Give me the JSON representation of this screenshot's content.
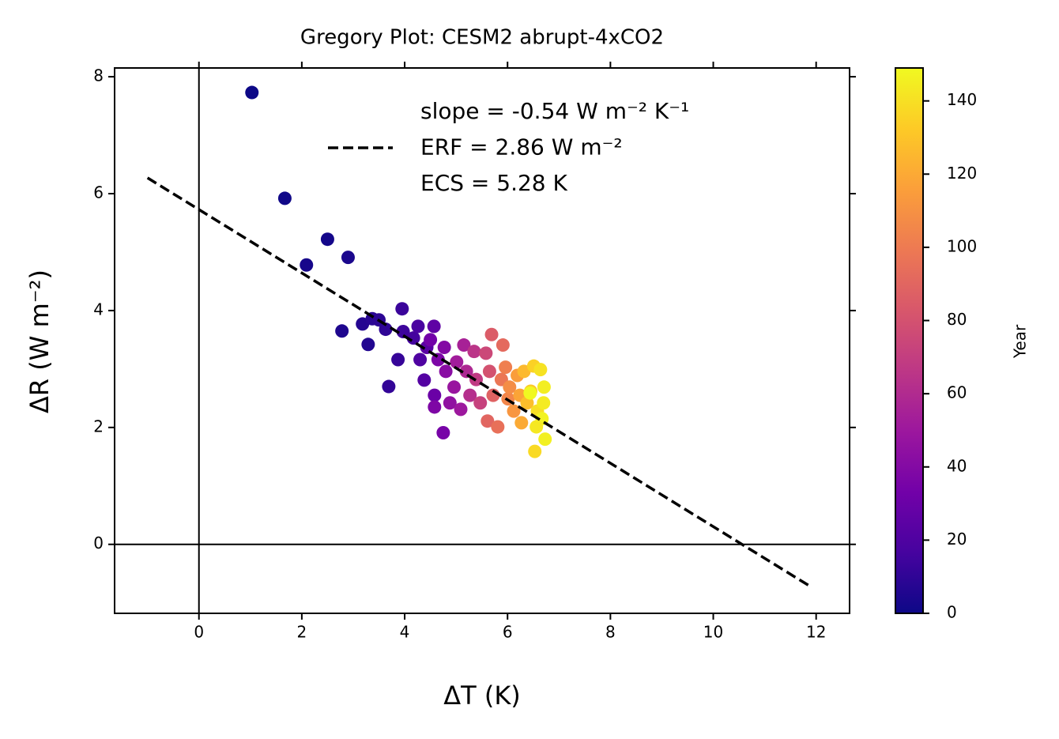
{
  "chart_data": {
    "type": "scatter",
    "title": "Gregory Plot: CESM2 abrupt-4xCO2",
    "x_label": "ΔT (K)",
    "y_label": "ΔR (W m⁻²)",
    "xlim": [
      -1.64,
      12.65
    ],
    "ylim": [
      -1.18,
      8.15
    ],
    "xticks": [
      0,
      2,
      4,
      6,
      8,
      10,
      12
    ],
    "yticks": [
      0,
      2,
      4,
      6,
      8
    ],
    "hline": 0,
    "vline": 0,
    "points": {
      "x": [
        1.03,
        1.67,
        2.5,
        2.09,
        2.9,
        2.78,
        3.29,
        3.18,
        3.37,
        3.5,
        3.63,
        3.69,
        3.87,
        3.95,
        3.97,
        4.17,
        4.26,
        4.3,
        4.38,
        4.43,
        4.57,
        4.58,
        4.75,
        4.58,
        4.5,
        4.65,
        4.77,
        4.8,
        4.88,
        4.96,
        5.01,
        5.09,
        5.15,
        5.2,
        5.27,
        5.35,
        5.39,
        5.47,
        5.58,
        5.65,
        5.69,
        5.72,
        5.61,
        5.81,
        5.91,
        5.88,
        5.96,
        6.01,
        6.04,
        6.12,
        6.19,
        6.24,
        6.27,
        6.32,
        6.38,
        6.45,
        6.51,
        6.53,
        6.58,
        6.64,
        6.7,
        6.73,
        6.67,
        6.71,
        6.56,
        6.44
      ],
      "y": [
        7.73,
        5.92,
        5.22,
        4.78,
        4.91,
        3.65,
        3.42,
        3.77,
        3.86,
        3.84,
        3.68,
        2.7,
        3.16,
        4.03,
        3.64,
        3.53,
        3.73,
        3.16,
        2.81,
        3.37,
        3.73,
        2.55,
        1.91,
        2.35,
        3.5,
        3.16,
        3.37,
        2.96,
        2.42,
        2.69,
        3.12,
        2.31,
        3.41,
        2.96,
        2.55,
        3.3,
        2.82,
        2.42,
        3.27,
        2.96,
        3.59,
        2.55,
        2.11,
        2.01,
        3.41,
        2.82,
        3.03,
        2.49,
        2.69,
        2.28,
        2.89,
        2.55,
        2.08,
        2.96,
        2.42,
        2.62,
        3.05,
        1.59,
        2.28,
        2.99,
        2.42,
        1.8,
        2.15,
        2.69,
        2.01,
        2.59
      ],
      "year": [
        0,
        1,
        2,
        3,
        4,
        5,
        6,
        7,
        8,
        9,
        10,
        11,
        12,
        13,
        14,
        16,
        18,
        20,
        22,
        24,
        26,
        30,
        35,
        38,
        33,
        37,
        40,
        42,
        45,
        48,
        52,
        50,
        55,
        58,
        62,
        65,
        68,
        72,
        75,
        80,
        85,
        88,
        90,
        95,
        92,
        98,
        102,
        105,
        108,
        112,
        115,
        118,
        120,
        126,
        128,
        132,
        135,
        138,
        140,
        141,
        144,
        146,
        147,
        145,
        143,
        149
      ]
    },
    "fit": {
      "name": [
        "slope = -0.54 W m⁻² K⁻¹",
        "ERF = 2.86 W m⁻²",
        "ECS = 5.28 K"
      ],
      "color": "#000000",
      "dashed": true,
      "x": [
        -1,
        11.85
      ],
      "y": [
        6.27,
        -0.7
      ]
    },
    "colorbar": {
      "label": "Year",
      "clim": [
        0,
        149
      ],
      "ticks": [
        0,
        20,
        40,
        60,
        80,
        100,
        120,
        140
      ],
      "colormap": [
        "#0d0887",
        "#46039f",
        "#7201a8",
        "#9c179e",
        "#bd3786",
        "#d8576b",
        "#ed7953",
        "#fb9f3a",
        "#fdca26",
        "#f0f921"
      ]
    }
  }
}
